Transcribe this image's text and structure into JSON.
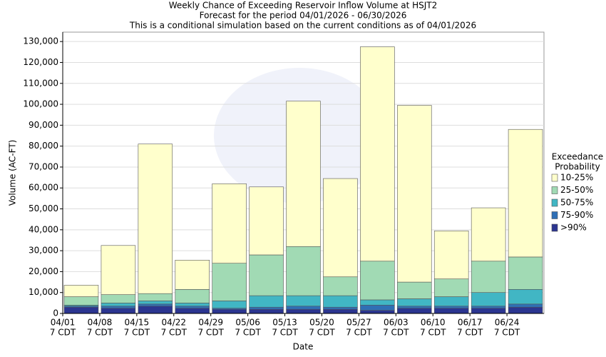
{
  "chart_data": {
    "type": "stacked_bar",
    "title": [
      "Weekly Chance of Exceeding Reservoir Inflow Volume at HSJT2",
      "Forecast for the period 04/01/2026 - 06/30/2026",
      "This is a conditional simulation based on the current conditions as of 04/01/2026"
    ],
    "x_label": "Date",
    "y_label": "Volume (AC-FT)",
    "categories": [
      "04/01",
      "04/08",
      "04/15",
      "04/22",
      "04/29",
      "05/06",
      "05/13",
      "05/20",
      "05/27",
      "06/03",
      "06/10",
      "06/17",
      "06/24"
    ],
    "time_labels": [
      "7 CDT",
      "7 CDT",
      "7 CDT",
      "7 CDT",
      "7 CDT",
      "7 CDT",
      "7 CDT",
      "7 CDT",
      "7 CDT",
      "7 CDT",
      "7 CDT",
      "7 CDT",
      "7 CDT"
    ],
    "legend_title": [
      "Exceedance",
      "Probability"
    ],
    "series": [
      {
        "name": ">90%",
        "color": "#2b3590",
        "values": [
          3000,
          2500,
          3500,
          2500,
          2000,
          2000,
          2000,
          2000,
          1500,
          2500,
          2500,
          2500,
          3000
        ]
      },
      {
        "name": "75-90%",
        "color": "#2f6fb5",
        "values": [
          500,
          1000,
          1000,
          1000,
          500,
          1000,
          1500,
          1000,
          2500,
          1000,
          1000,
          1000,
          1500
        ]
      },
      {
        "name": "50-75%",
        "color": "#41b6c4",
        "values": [
          500,
          1500,
          1500,
          1500,
          3500,
          5500,
          5000,
          5500,
          2500,
          3500,
          4500,
          6500,
          7000
        ]
      },
      {
        "name": "25-50%",
        "color": "#a1dab4",
        "values": [
          4000,
          4000,
          3500,
          6500,
          18000,
          19500,
          23500,
          9000,
          18500,
          8000,
          8500,
          15000,
          15500
        ]
      },
      {
        "name": "10-25%",
        "color": "#ffffcc",
        "values": [
          5500,
          23500,
          71500,
          14000,
          38000,
          32500,
          69500,
          47000,
          102500,
          84500,
          23000,
          25500,
          61000
        ]
      }
    ],
    "ylim": [
      0,
      134500
    ],
    "yticks": [
      0,
      {
        "value": 10000,
        "label": "10,000"
      },
      {
        "value": 20000,
        "label": "20,000"
      },
      {
        "value": 30000,
        "label": "30,000"
      },
      {
        "value": 40000,
        "label": "40,000"
      },
      {
        "value": 50000,
        "label": "50,000"
      },
      {
        "value": 60000,
        "label": "60,000"
      },
      {
        "value": 70000,
        "label": "70,000"
      },
      {
        "value": 80000,
        "label": "80,000"
      },
      {
        "value": 90000,
        "label": "90,000"
      },
      {
        "value": 100000,
        "label": "100,000"
      },
      {
        "value": 110000,
        "label": "110,000"
      },
      {
        "value": 120000,
        "label": "120,000"
      },
      {
        "value": 130000,
        "label": "130,000"
      }
    ],
    "grid": true
  }
}
